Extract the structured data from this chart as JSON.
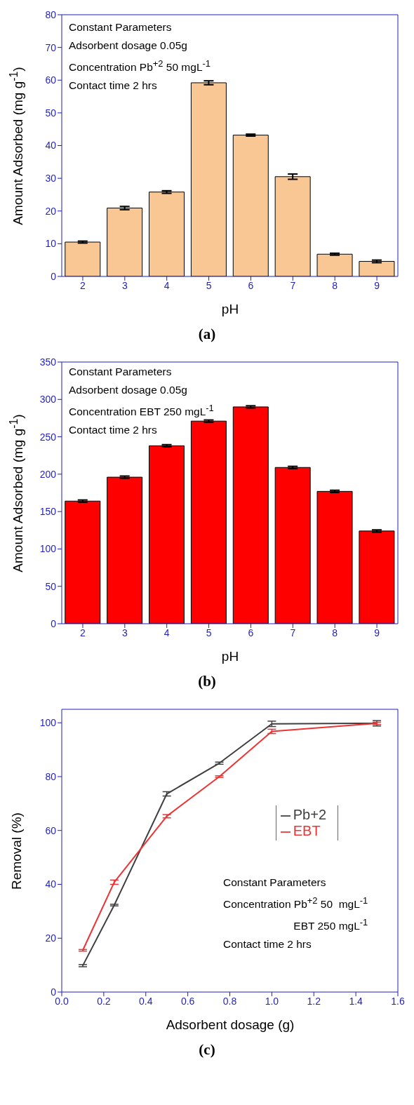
{
  "chart_data": [
    {
      "type": "bar",
      "title": "(a)",
      "xlabel": "pH",
      "ylabel": "Amount Adsorbed (mg g$^{-1}$)",
      "categories": [
        "2",
        "3",
        "4",
        "5",
        "6",
        "7",
        "8",
        "9"
      ],
      "values": [
        10.5,
        20.9,
        25.8,
        59.2,
        43.2,
        30.5,
        6.8,
        4.6
      ],
      "errors": [
        0.3,
        0.5,
        0.4,
        0.6,
        0.3,
        0.8,
        0.3,
        0.4
      ],
      "color": "#f9c794",
      "ylim": [
        0,
        80
      ],
      "yticks": [
        0,
        10,
        20,
        30,
        40,
        50,
        60,
        70,
        80
      ],
      "annotations": [
        "Constant Parameters",
        "Adsorbent dosage 0.05g",
        "Concentration Pb$^{+2}$ 50 mgL$^{-1}$",
        "Contact time 2 hrs"
      ]
    },
    {
      "type": "bar",
      "title": "(b)",
      "xlabel": "pH",
      "ylabel": "Amount Adsorbed (mg g$^{-1}$)",
      "categories": [
        "2",
        "3",
        "4",
        "5",
        "6",
        "7",
        "8",
        "9"
      ],
      "values": [
        164,
        196,
        238,
        271,
        290,
        209,
        177,
        124
      ],
      "errors": [
        1.5,
        1.5,
        1.5,
        1.5,
        1.5,
        1.5,
        1.5,
        1.5
      ],
      "color": "#ff0000",
      "ylim": [
        0,
        350
      ],
      "yticks": [
        0,
        50,
        100,
        150,
        200,
        250,
        300,
        350
      ],
      "annotations": [
        "Constant Parameters",
        "Adsorbent dosage 0.05g",
        "Concentration EBT 250 mgL$^{-1}$",
        "Contact time 2 hrs"
      ]
    },
    {
      "type": "line",
      "title": "(c)",
      "xlabel": "Adsorbent dosage (g)",
      "ylabel": "Removal (%)",
      "x": [
        0.1,
        0.25,
        0.5,
        0.75,
        1.0,
        1.5
      ],
      "series": [
        {
          "name": "Pb+2",
          "color": "#404040",
          "values": [
            9.8,
            32.3,
            73.6,
            85,
            99.6,
            99.8
          ],
          "errors": [
            0.4,
            0.3,
            0.8,
            0.4,
            1,
            1
          ]
        },
        {
          "name": "EBT",
          "color": "#ee3333",
          "values": [
            15.5,
            40.8,
            65.3,
            80,
            96.8,
            99.8
          ],
          "errors": [
            0.3,
            0.8,
            0.6,
            0.3,
            0.8,
            0.4
          ]
        }
      ],
      "xlim": [
        0,
        1.6
      ],
      "xticks": [
        {
          "value": 0,
          "label": "0.0"
        },
        0.2,
        0.4,
        0.6,
        0.8,
        {
          "value": 1,
          "label": "1.0"
        },
        1.2,
        1.4,
        1.6
      ],
      "ylim": [
        0,
        105
      ],
      "yticks": [
        0,
        20,
        40,
        60,
        80,
        100
      ],
      "legend": "top right",
      "annotations": [
        "Constant Parameters",
        "Concentration Pb$^{+2}$ 50  mgL$^{-1}$",
        "EBT 250 mgL$^{-1}$",
        "Contact time 2 hrs"
      ]
    }
  ]
}
